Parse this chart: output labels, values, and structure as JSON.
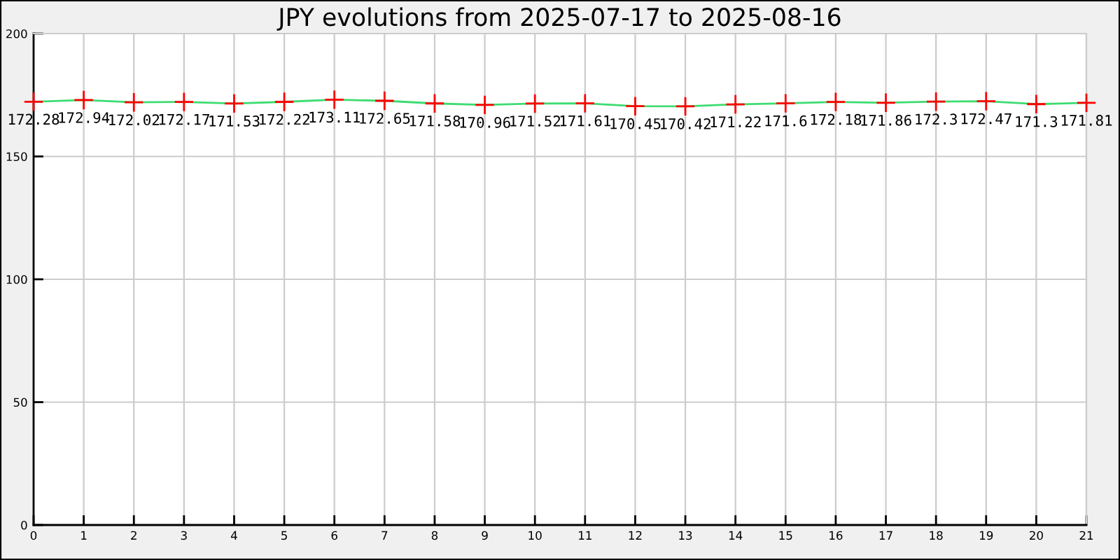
{
  "chart_data": {
    "type": "line",
    "title": "JPY evolutions from 2025-07-17 to 2025-08-16",
    "x": [
      0,
      1,
      2,
      3,
      4,
      5,
      6,
      7,
      8,
      9,
      10,
      11,
      12,
      13,
      14,
      15,
      16,
      17,
      18,
      19,
      20,
      21
    ],
    "xlim": [
      0,
      21
    ],
    "xticks": [
      0,
      1,
      2,
      3,
      4,
      5,
      6,
      7,
      8,
      9,
      10,
      11,
      12,
      13,
      14,
      15,
      16,
      17,
      18,
      19,
      20,
      21
    ],
    "ylim": [
      0,
      200
    ],
    "yticks": [
      0,
      50,
      100,
      150,
      200
    ],
    "series": [
      {
        "color": "#3ddc71",
        "colors": [
          "#ff0000",
          "#ff0000",
          "#ff0000",
          "#ff0000",
          "#ff0000",
          "#ff0000",
          "#ff0000",
          "#ff0000",
          "#ff0000",
          "#ff0000",
          "#ff0000",
          "#ff0000",
          "#ff0000",
          "#ff0000",
          "#ff0000",
          "#ff0000",
          "#ff0000",
          "#ff0000",
          "#ff0000",
          "#ff0000",
          "#ff0000",
          "#ff0000"
        ],
        "values": [
          172.28,
          172.94,
          172.02,
          172.17,
          171.53,
          172.22,
          173.11,
          172.65,
          171.58,
          170.96,
          171.52,
          171.61,
          170.45,
          170.42,
          171.22,
          171.6,
          172.18,
          171.86,
          172.3,
          172.47,
          171.3,
          171.81
        ]
      }
    ],
    "grid": true,
    "marker": "cross",
    "line_style": "solid",
    "data_labels": true
  }
}
